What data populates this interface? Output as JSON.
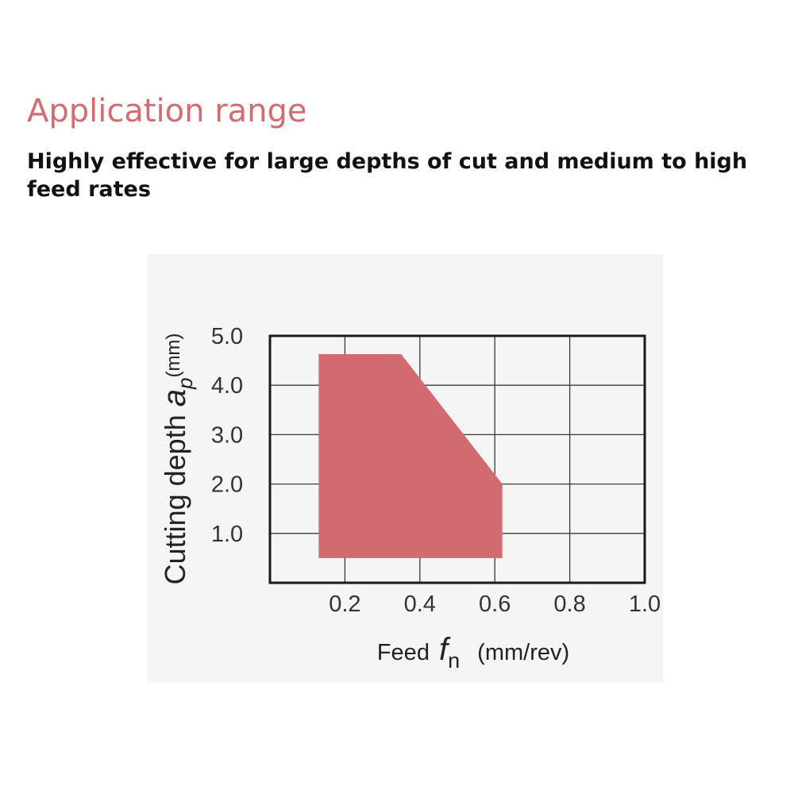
{
  "heading": "Application range",
  "subheading": "Highly effective for large depths of cut and medium to high feed rates",
  "colors": {
    "accent": "#d26c71",
    "region": "#d26b70",
    "text": "#111111"
  },
  "chart_data": {
    "type": "area",
    "xlabel": {
      "prefix": "Feed ",
      "symbol": "f",
      "subscript": "n",
      "unit": "(mm/rev)"
    },
    "ylabel": {
      "prefix": "Cutting depth ",
      "symbol": "a",
      "subscript": "p",
      "unit": "(mm)"
    },
    "x_ticks": [
      "0.2",
      "0.4",
      "0.6",
      "0.8",
      "1.0"
    ],
    "y_ticks": [
      "5.0",
      "4.0",
      "3.0",
      "2.0",
      "1.0"
    ],
    "xlim": [
      0.0,
      1.0
    ],
    "ylim": [
      0.0,
      5.0
    ],
    "grid": true,
    "region": {
      "x": [
        0.13,
        0.35,
        0.62,
        0.62,
        0.13
      ],
      "y": [
        4.63,
        4.63,
        2.0,
        0.5,
        0.5
      ]
    }
  }
}
